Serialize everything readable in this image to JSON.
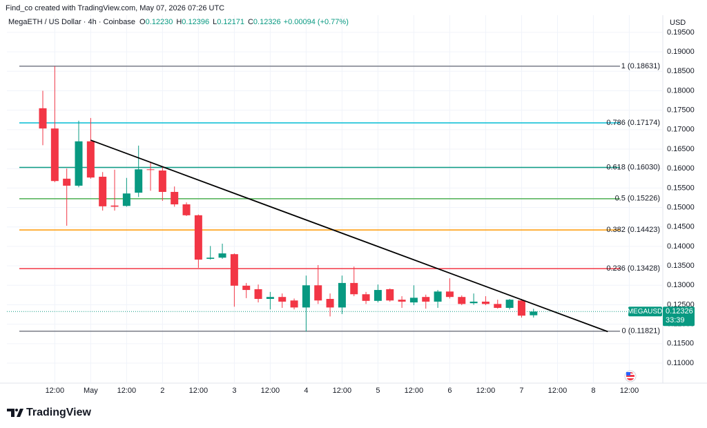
{
  "header": "Find_co created with TradingView.com, May 07, 2026 07:26 UTC",
  "chart_data": {
    "type": "candlestick",
    "legend": {
      "symbol": "MegaETH / US Dollar · 4h · Coinbase",
      "fields": [
        {
          "key": "O",
          "value": "0.12230"
        },
        {
          "key": "H",
          "value": "0.12396"
        },
        {
          "key": "L",
          "value": "0.12171"
        },
        {
          "key": "C",
          "value": "0.12326"
        }
      ],
      "change": "+0.00094 (+0.77%)"
    },
    "axis_unit": "USD",
    "up_color": "#089981",
    "down_color": "#f23645",
    "grid": true,
    "ohlc": {
      "open": [
        0.1755,
        0.1703,
        0.1574,
        0.1556,
        0.167,
        0.1579,
        0.1505,
        0.1504,
        0.1538,
        0.1598,
        0.1595,
        0.154,
        0.1508,
        0.148,
        0.1368,
        0.1371,
        0.138,
        0.1299,
        0.129,
        0.1265,
        0.127,
        0.1261,
        0.1243,
        0.13,
        0.1265,
        0.1243,
        0.1306,
        0.1277,
        0.126,
        0.129,
        0.1263,
        0.1256,
        0.127,
        0.1258,
        0.1284,
        0.127,
        0.1254,
        0.1258,
        0.1252,
        0.1242,
        0.1261,
        0.1223
      ],
      "high": [
        0.18,
        0.1863,
        0.16,
        0.1723,
        0.173,
        0.1591,
        0.1597,
        0.1576,
        0.1659,
        0.1616,
        0.1604,
        0.1554,
        0.1513,
        0.1482,
        0.1401,
        0.1407,
        0.1382,
        0.1306,
        0.1302,
        0.1283,
        0.1279,
        0.1266,
        0.1325,
        0.1352,
        0.1279,
        0.1325,
        0.1348,
        0.1283,
        0.1302,
        0.1292,
        0.1272,
        0.13,
        0.1276,
        0.1288,
        0.1318,
        0.1274,
        0.1279,
        0.1272,
        0.1263,
        0.1265,
        0.1265,
        0.12396
      ],
      "low": [
        0.166,
        0.1565,
        0.1453,
        0.1552,
        0.1574,
        0.1492,
        0.1492,
        0.1502,
        0.1527,
        0.1543,
        0.1517,
        0.1502,
        0.1478,
        0.1345,
        0.1366,
        0.1368,
        0.1245,
        0.1267,
        0.1256,
        0.1238,
        0.1242,
        0.1238,
        0.1181,
        0.1252,
        0.122,
        0.1226,
        0.1272,
        0.1252,
        0.1256,
        0.1258,
        0.1242,
        0.1249,
        0.124,
        0.1242,
        0.1266,
        0.1249,
        0.125,
        0.1249,
        0.124,
        0.1238,
        0.1217,
        0.12171
      ],
      "close": [
        0.1703,
        0.1568,
        0.1556,
        0.167,
        0.1577,
        0.1503,
        0.1502,
        0.1536,
        0.1598,
        0.1597,
        0.154,
        0.1508,
        0.148,
        0.1366,
        0.1371,
        0.1382,
        0.1299,
        0.1288,
        0.1265,
        0.127,
        0.1258,
        0.1243,
        0.13,
        0.1261,
        0.1243,
        0.1306,
        0.1277,
        0.126,
        0.1288,
        0.1261,
        0.1258,
        0.1268,
        0.1258,
        0.1284,
        0.127,
        0.1252,
        0.1258,
        0.1252,
        0.1242,
        0.1263,
        0.1222,
        0.12326
      ]
    },
    "xlim": [
      -3,
      51.8
    ],
    "xticks": [
      {
        "value": 1,
        "label": "12:00"
      },
      {
        "value": 4,
        "label": "May"
      },
      {
        "value": 7,
        "label": "12:00"
      },
      {
        "value": 10,
        "label": "2"
      },
      {
        "value": 13,
        "label": "12:00"
      },
      {
        "value": 16,
        "label": "3"
      },
      {
        "value": 19,
        "label": "12:00"
      },
      {
        "value": 22,
        "label": "4"
      },
      {
        "value": 25,
        "label": "12:00"
      },
      {
        "value": 28,
        "label": "5"
      },
      {
        "value": 31,
        "label": "12:00"
      },
      {
        "value": 34,
        "label": "6"
      },
      {
        "value": 37,
        "label": "12:00"
      },
      {
        "value": 40,
        "label": "7"
      },
      {
        "value": 43,
        "label": "12:00"
      },
      {
        "value": 46,
        "label": "8"
      },
      {
        "value": 49,
        "label": "12:00"
      }
    ],
    "ylim": [
      0.1061,
      0.198
    ],
    "yticks": [
      {
        "value": 0.11,
        "label": "0.11000"
      },
      {
        "value": 0.115,
        "label": "0.11500"
      },
      {
        "value": 0.12,
        "label": "0.12000"
      },
      {
        "value": 0.125,
        "label": "0.12500"
      },
      {
        "value": 0.13,
        "label": "0.13000"
      },
      {
        "value": 0.135,
        "label": "0.13500"
      },
      {
        "value": 0.14,
        "label": "0.14000"
      },
      {
        "value": 0.145,
        "label": "0.14500"
      },
      {
        "value": 0.15,
        "label": "0.15000"
      },
      {
        "value": 0.155,
        "label": "0.15500"
      },
      {
        "value": 0.16,
        "label": "0.16000"
      },
      {
        "value": 0.165,
        "label": "0.16500"
      },
      {
        "value": 0.17,
        "label": "0.17000"
      },
      {
        "value": 0.175,
        "label": "0.17500"
      },
      {
        "value": 0.18,
        "label": "0.18000"
      },
      {
        "value": 0.185,
        "label": "0.18500"
      },
      {
        "value": 0.19,
        "label": "0.19000"
      },
      {
        "value": 0.195,
        "label": "0.19500"
      }
    ],
    "fib_levels": [
      {
        "label": "1 (0.18631)",
        "value": 0.18631,
        "color": "#787b86"
      },
      {
        "label": "0.786 (0.17174)",
        "value": 0.17174,
        "color": "#00bcd4"
      },
      {
        "label": "0.618 (0.16030)",
        "value": 0.1603,
        "color": "#089981"
      },
      {
        "label": "0.5 (0.15226)",
        "value": 0.15226,
        "color": "#4caf50"
      },
      {
        "label": "0.382 (0.14423)",
        "value": 0.14423,
        "color": "#ff9800"
      },
      {
        "label": "0.236 (0.13428)",
        "value": 0.13428,
        "color": "#f23645"
      },
      {
        "label": "0 (0.11821)",
        "value": 0.11821,
        "color": "#787b86"
      }
    ],
    "trend_line": {
      "x": [
        4,
        47.2
      ],
      "y": [
        0.1673,
        0.1181
      ],
      "color": "#000000"
    },
    "last_price": {
      "symbol": "MEGAUSD",
      "value": 0.12326,
      "label": "0.12326",
      "countdown": "33:39"
    }
  },
  "brand": "TradingView"
}
